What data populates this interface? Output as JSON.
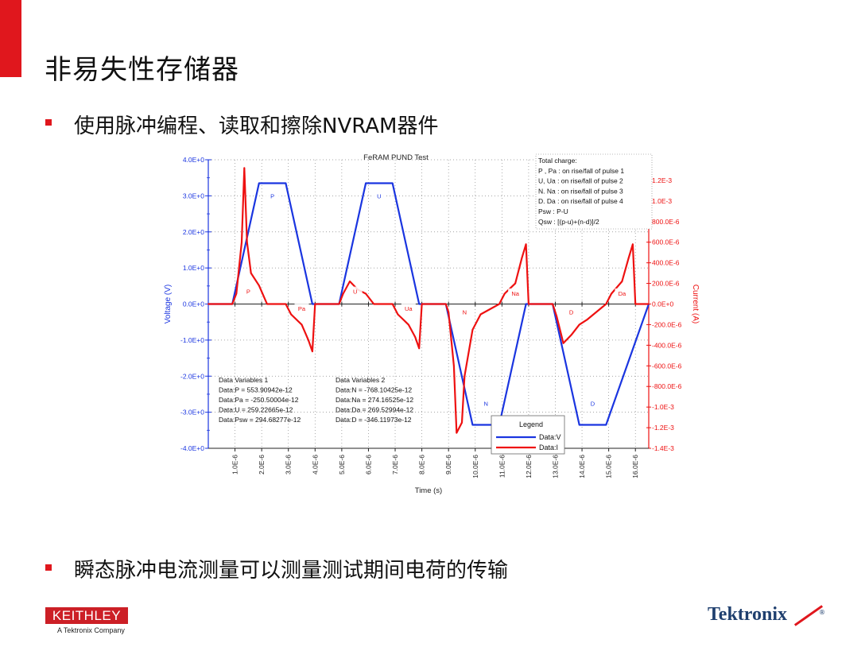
{
  "slide": {
    "title": "非易失性存储器",
    "bullet1": "使用脉冲编程、读取和擦除NVRAM器件",
    "bullet2": "瞬态脉冲电流测量可以测量测试期间电荷的传输"
  },
  "logos": {
    "keithley": "KEITHLEY",
    "keithley_sub": "A Tektronix Company",
    "tektronix": "Tektronix",
    "tektronix_mark": "®"
  },
  "colors": {
    "accent": "#e0171d",
    "voltage": "#1a35e0",
    "current": "#ee1111"
  },
  "chart_data": {
    "type": "line",
    "title": "FeRAM PUND Test",
    "xlabel": "Time (s)",
    "ylabel": "Voltage (V)",
    "y2label": "Current (A)",
    "xlim": [
      0,
      1.65e-05
    ],
    "ylim": [
      -4.0,
      4.0
    ],
    "y2lim": [
      -0.0014,
      0.0014
    ],
    "x_ticks": [
      "1.0E-6",
      "2.0E-6",
      "3.0E-6",
      "4.0E-6",
      "5.0E-6",
      "6.0E-6",
      "7.0E-6",
      "8.0E-6",
      "9.0E-6",
      "10.0E-6",
      "11.0E-6",
      "12.0E-6",
      "13.0E-6",
      "14.0E-6",
      "15.0E-6",
      "16.0E-6"
    ],
    "y_ticks": [
      "4.0E+0",
      "3.0E+0",
      "2.0E+0",
      "1.0E+0",
      "0.0E+0",
      "-1.0E+0",
      "-2.0E+0",
      "-3.0E+0",
      "-4.0E+0"
    ],
    "y2_ticks": [
      "1.2E-3",
      "1.0E-3",
      "800.0E-6",
      "600.0E-6",
      "400.0E-6",
      "200.0E-6",
      "0.0E+0",
      "-200.0E-6",
      "-400.0E-6",
      "-600.0E-6",
      "-800.0E-6",
      "-1.0E-3",
      "-1.2E-3",
      "-1.4E-3"
    ],
    "grid": true,
    "series": [
      {
        "name": "Data:V",
        "axis": "left",
        "x": [
          0,
          9e-07,
          1.9e-06,
          2.9e-06,
          3.9e-06,
          4.9e-06,
          5.9e-06,
          6.9e-06,
          7.9e-06,
          8.9e-06,
          9.9e-06,
          1.09e-05,
          1.19e-05,
          1.29e-05,
          1.39e-05,
          1.49e-05,
          1.65e-05
        ],
        "y": [
          0,
          0,
          3.35,
          3.35,
          0,
          0,
          3.35,
          3.35,
          0,
          0,
          -3.35,
          -3.35,
          0,
          0,
          -3.35,
          -3.35,
          0
        ]
      },
      {
        "name": "Data:I",
        "axis": "right",
        "x": [
          0,
          9e-07,
          1.05e-06,
          1.25e-06,
          1.35e-06,
          1.45e-06,
          1.6e-06,
          1.9e-06,
          2.2e-06,
          2.9e-06,
          3.1e-06,
          3.5e-06,
          3.75e-06,
          3.9e-06,
          4e-06,
          4.9e-06,
          5.05e-06,
          5.3e-06,
          5.6e-06,
          5.9e-06,
          6.2e-06,
          6.9e-06,
          7.1e-06,
          7.5e-06,
          7.75e-06,
          7.9e-06,
          8e-06,
          8.9e-06,
          9e-06,
          9.2e-06,
          9.3e-06,
          9.5e-06,
          9.6e-06,
          9.9e-06,
          1.02e-05,
          1.09e-05,
          1.11e-05,
          1.15e-05,
          1.175e-05,
          1.19e-05,
          1.2e-05,
          1.29e-05,
          1.305e-05,
          1.33e-05,
          1.36e-05,
          1.39e-05,
          1.42e-05,
          1.49e-05,
          1.51e-05,
          1.55e-05,
          1.575e-05,
          1.59e-05,
          1.6e-05,
          1.65e-05
        ],
        "y": [
          0,
          0,
          0.0001,
          0.0006,
          0.00132,
          0.0006,
          0.0003,
          0.00018,
          0,
          0,
          -0.0001,
          -0.0002,
          -0.00035,
          -0.00046,
          0,
          0,
          0.0001,
          0.00022,
          0.00014,
          0.0001,
          0,
          0,
          -0.0001,
          -0.0002,
          -0.00032,
          -0.00043,
          0,
          0,
          -8e-05,
          -0.0006,
          -0.00125,
          -0.00115,
          -0.0007,
          -0.00025,
          -0.0001,
          0,
          0.0001,
          0.0002,
          0.00045,
          0.00058,
          0,
          0,
          -0.00012,
          -0.00038,
          -0.0003,
          -0.0002,
          -0.00015,
          0,
          0.0001,
          0.00022,
          0.00045,
          0.00058,
          0,
          0
        ]
      }
    ],
    "markers": [
      {
        "label": "P",
        "x": 2.4e-06,
        "y": 3.0,
        "color": "blue"
      },
      {
        "label": "U",
        "x": 6.4e-06,
        "y": 3.0,
        "color": "blue"
      },
      {
        "label": "N",
        "x": 1.04e-05,
        "y": -2.75,
        "color": "blue"
      },
      {
        "label": "D",
        "x": 1.44e-05,
        "y": -2.75,
        "color": "blue"
      },
      {
        "label": "P",
        "x": 1.5e-06,
        "y": 0.35,
        "color": "red"
      },
      {
        "label": "U",
        "x": 5.5e-06,
        "y": 0.35,
        "color": "red"
      },
      {
        "label": "Na",
        "x": 1.15e-05,
        "y": 0.3,
        "color": "red"
      },
      {
        "label": "Da",
        "x": 1.55e-05,
        "y": 0.3,
        "color": "red"
      },
      {
        "label": "Pa",
        "x": 3.5e-06,
        "y": -0.12,
        "color": "red"
      },
      {
        "label": "Ua",
        "x": 7.5e-06,
        "y": -0.12,
        "color": "red"
      },
      {
        "label": "N",
        "x": 9.6e-06,
        "y": -0.22,
        "color": "red"
      },
      {
        "label": "D",
        "x": 1.36e-05,
        "y": -0.22,
        "color": "red"
      }
    ],
    "legend": {
      "title": "Legend",
      "entries": [
        "Data:V",
        "Data:I"
      ],
      "placement": "bottom-right"
    },
    "annotations": {
      "total_charge": [
        "Total charge:",
        "P , Pa  :  on rise/fall of pulse 1",
        "U, Ua  :  on rise/fall of pulse 2",
        "N. Na  :  on rise/fall of pulse 3",
        "D. Da  :  on rise/fall of pulse 4",
        "Psw :  P-U",
        "Qsw :  [(p-u)+(n-d)]/2"
      ],
      "vars1": [
        "Data Variables 1",
        "Data:P = 553.90942e-12",
        "Data:Pa = -250.50004e-12",
        "Data:U = 259.22665e-12",
        "Data:Psw = 294.68277e-12"
      ],
      "vars2": [
        "Data Variables 2",
        "Data:N = -768.10425e-12",
        "Data:Na = 274.16525e-12",
        "Data:Da = 269.52994e-12",
        "Data:D = -346.11973e-12"
      ]
    }
  }
}
